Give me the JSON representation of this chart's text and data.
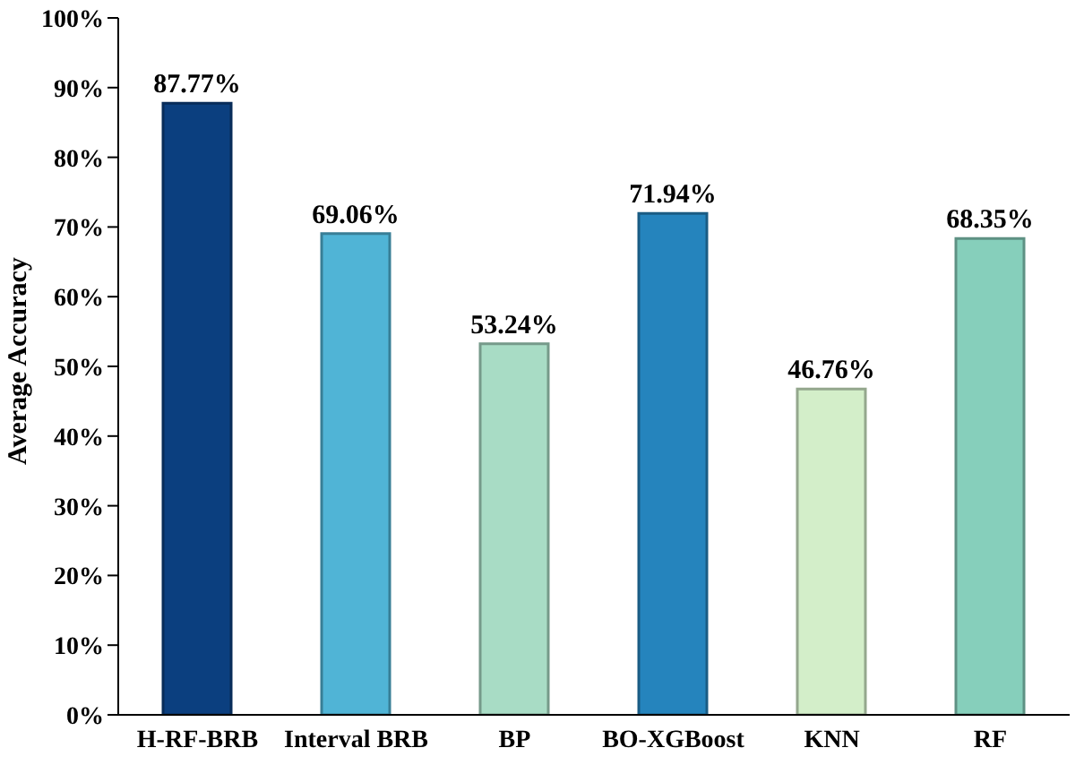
{
  "chart_data": {
    "type": "bar",
    "ylabel": "Average Accuracy",
    "categories": [
      "H-RF-BRB",
      "Interval BRB",
      "BP",
      "BO-XGBoost",
      "KNN",
      "RF"
    ],
    "values": [
      87.77,
      69.06,
      53.24,
      71.94,
      46.76,
      68.35
    ],
    "colors": [
      "#0b3f7f",
      "#50b4d6",
      "#a8dcc5",
      "#2584bd",
      "#d3eec9",
      "#86cfbb"
    ],
    "value_labels": [
      "87.77%",
      "69.06%",
      "53.24%",
      "71.94%",
      "46.76%",
      "68.35%"
    ],
    "ylim": [
      0,
      100
    ],
    "yticks": [
      {
        "value": 0,
        "label": "0%"
      },
      {
        "value": 10,
        "label": "10%"
      },
      {
        "value": 20,
        "label": "20%"
      },
      {
        "value": 30,
        "label": "30%"
      },
      {
        "value": 40,
        "label": "40%"
      },
      {
        "value": 50,
        "label": "50%"
      },
      {
        "value": 60,
        "label": "60%"
      },
      {
        "value": 70,
        "label": "70%"
      },
      {
        "value": 80,
        "label": "80%"
      },
      {
        "value": 90,
        "label": "90%"
      },
      {
        "value": 100,
        "label": "100%"
      }
    ],
    "grid": false
  }
}
